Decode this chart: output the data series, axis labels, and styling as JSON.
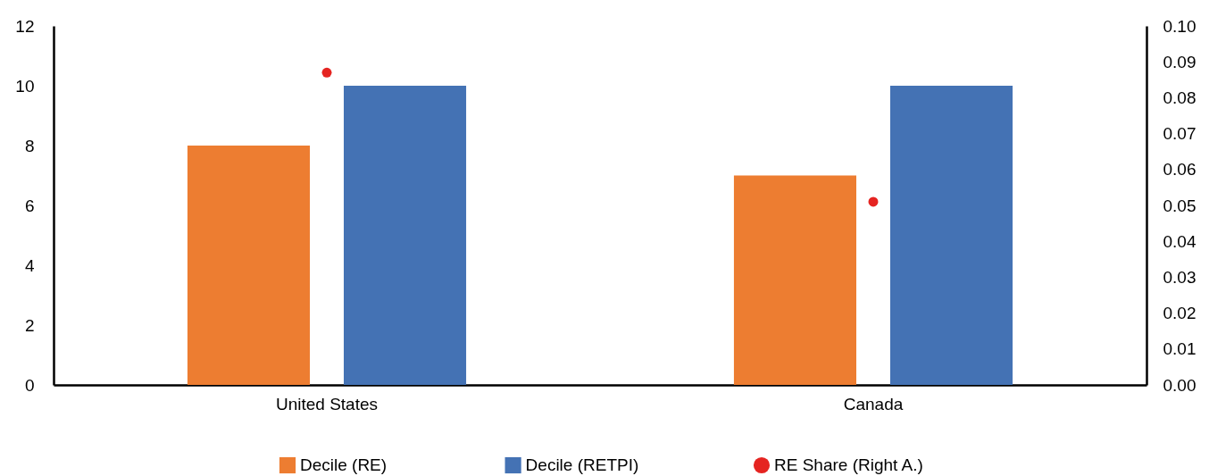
{
  "chart_data": {
    "type": "bar",
    "categories": [
      "United States",
      "Canada"
    ],
    "series": [
      {
        "name": "Decile (RE)",
        "color": "#ed7d31",
        "values": [
          8,
          7
        ]
      },
      {
        "name": "Decile (RETPI)",
        "color": "#4472b4",
        "values": [
          10,
          10
        ]
      },
      {
        "name": "RE Share (Right A.)",
        "color": "#e52421",
        "values": [
          0.087,
          0.051
        ],
        "type": "scatter",
        "axis": "y2"
      }
    ],
    "ylim": [
      0,
      12
    ],
    "yticks": [
      0,
      2,
      4,
      6,
      8,
      10,
      12
    ],
    "y2lim": [
      0,
      0.1
    ],
    "y2ticks": [
      {
        "value": 0,
        "label": "0.00"
      },
      {
        "value": 0.01,
        "label": "0.01"
      },
      {
        "value": 0.02,
        "label": "0.02"
      },
      {
        "value": 0.03,
        "label": "0.03"
      },
      {
        "value": 0.04,
        "label": "0.04"
      },
      {
        "value": 0.05,
        "label": "0.05"
      },
      {
        "value": 0.06,
        "label": "0.06"
      },
      {
        "value": 0.07,
        "label": "0.07"
      },
      {
        "value": 0.08,
        "label": "0.08"
      },
      {
        "value": 0.09,
        "label": "0.09"
      },
      {
        "value": 0.1,
        "label": "0.10"
      }
    ],
    "grid": false,
    "legend": "bottom"
  }
}
